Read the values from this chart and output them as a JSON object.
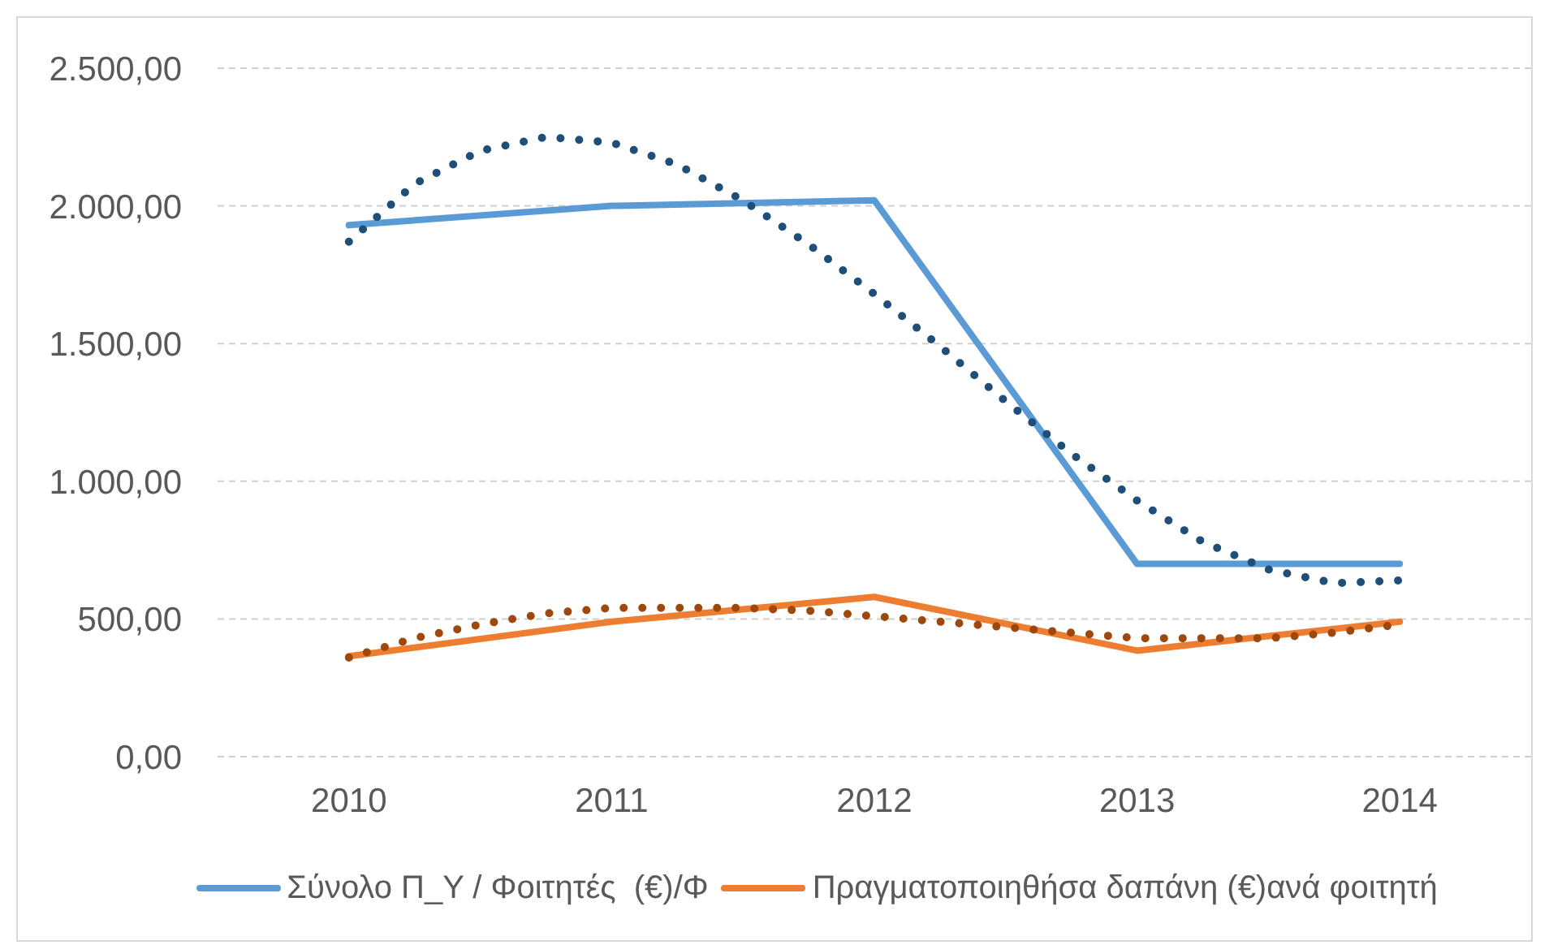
{
  "chart_data": {
    "type": "line",
    "x": [
      2010,
      2011,
      2012,
      2013,
      2014
    ],
    "xlim": [
      2009.5,
      2014.5
    ],
    "xticks": [
      2010,
      2011,
      2012,
      2013,
      2014
    ],
    "ylim": [
      0,
      2500
    ],
    "yticks": [
      {
        "value": 0,
        "label": "0,00"
      },
      {
        "value": 500,
        "label": "500,00"
      },
      {
        "value": 1000,
        "label": "1.000,00"
      },
      {
        "value": 1500,
        "label": "1.500,00"
      },
      {
        "value": 2000,
        "label": "2.000,00"
      },
      {
        "value": 2500,
        "label": "2.500,00"
      }
    ],
    "grid": "y",
    "legend": "bottom",
    "marker": "none",
    "line_style": "solid",
    "series": [
      {
        "name": "Σύνολο Π_Υ / Φοιτητές  (€)/Φ",
        "color": "#5b9bd5",
        "values": [
          1930,
          2000,
          2020,
          700,
          700
        ]
      },
      {
        "name": "Πραγματοποιηθήσα δαπάνη (€)ανά φοιτητή",
        "color": "#ed7d31",
        "values": [
          365,
          490,
          580,
          385,
          490
        ]
      },
      {
        "type": "line",
        "color": "#1f4e79",
        "line_style": "dotted",
        "x": [
          2010,
          2010.25,
          2010.5,
          2010.75,
          2011,
          2011.25,
          2011.5,
          2011.75,
          2012,
          2012.25,
          2012.5,
          2012.75,
          2013,
          2013.25,
          2013.5,
          2013.75,
          2014
        ],
        "values": [
          1870,
          2080,
          2200,
          2250,
          2230,
          2150,
          2020,
          1860,
          1680,
          1490,
          1290,
          1100,
          930,
          780,
          680,
          630,
          640
        ]
      },
      {
        "type": "line",
        "color": "#9e480e",
        "line_style": "dotted",
        "x": [
          2010,
          2010.25,
          2010.5,
          2010.75,
          2011,
          2011.25,
          2011.5,
          2011.75,
          2012,
          2012.25,
          2012.5,
          2012.75,
          2013,
          2013.25,
          2013.5,
          2013.75,
          2014
        ],
        "values": [
          360,
          430,
          480,
          520,
          540,
          540,
          540,
          530,
          510,
          490,
          470,
          450,
          430,
          430,
          430,
          450,
          480
        ]
      }
    ]
  }
}
